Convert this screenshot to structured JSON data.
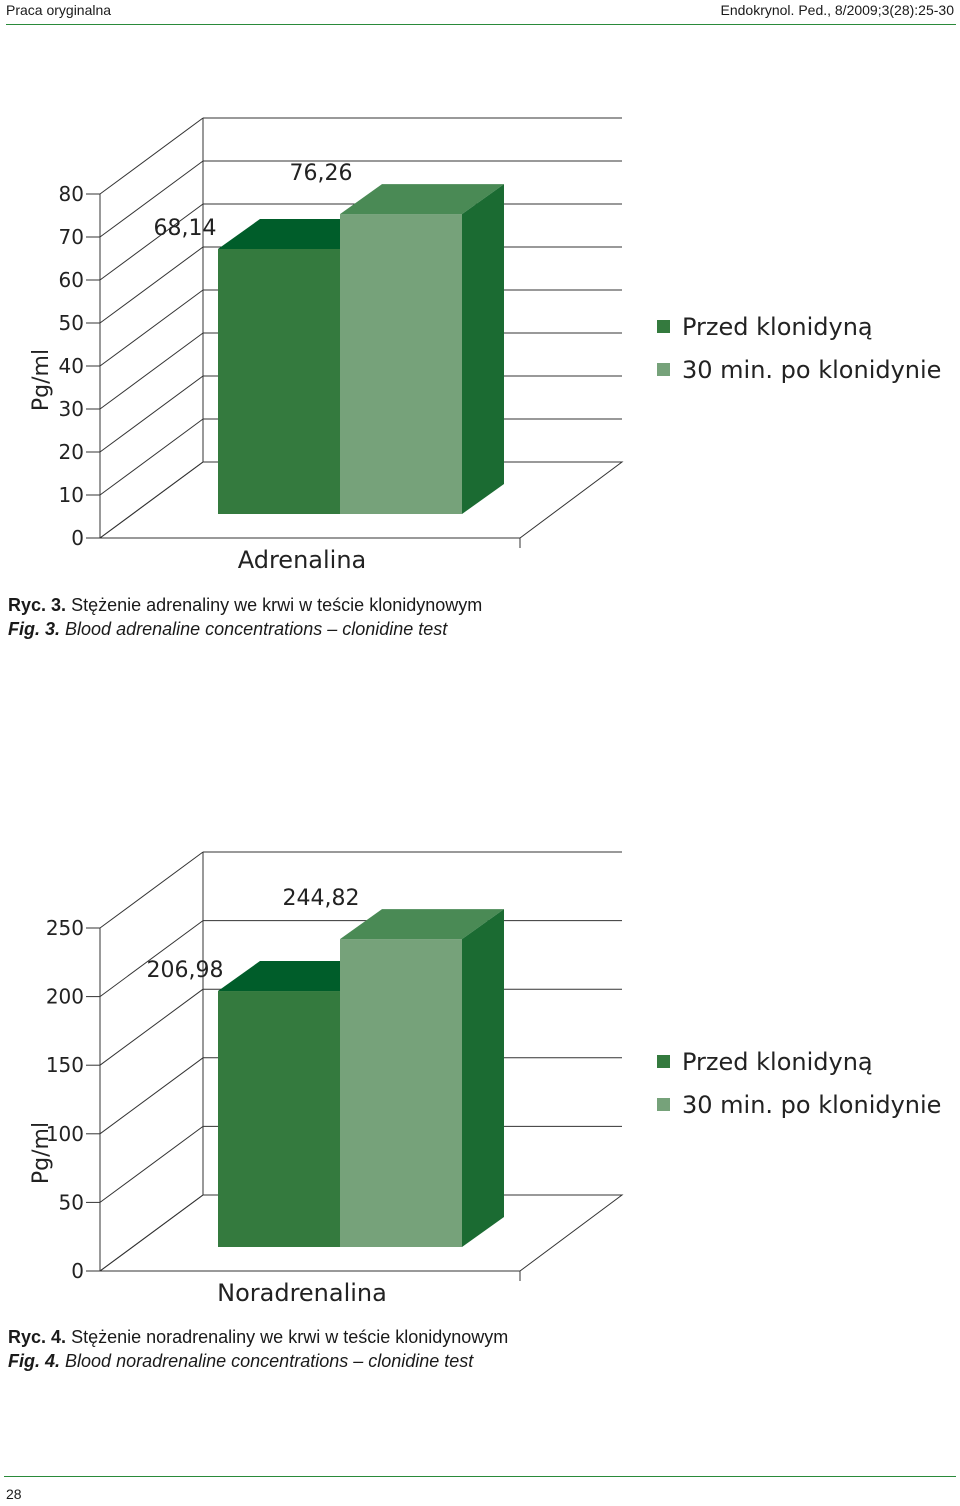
{
  "header": {
    "left": "Praca oryginalna",
    "right": "Endokrynol. Ped., 8/2009;3(28):25-30"
  },
  "colors": {
    "series1_front": "#347a3e",
    "series1_top": "#005d2a",
    "series2_front": "#76a27a",
    "series2_top": "#4a8a55",
    "side": "#1b6b32"
  },
  "chart_data": [
    {
      "type": "bar",
      "categories": [
        "Adrenalina"
      ],
      "series": [
        {
          "name": "Przed klonidyną",
          "values": [
            68.14
          ],
          "label": "68,14"
        },
        {
          "name": "30 min. po klonidynie",
          "values": [
            76.26
          ],
          "label": "76,26"
        }
      ],
      "ylabel": "Pg/ml",
      "yticks": [
        "0",
        "10",
        "20",
        "30",
        "40",
        "50",
        "60",
        "70",
        "80"
      ],
      "ylim": [
        0,
        80
      ],
      "grid": true,
      "legend": "right"
    },
    {
      "type": "bar",
      "categories": [
        "Noradrenalina"
      ],
      "series": [
        {
          "name": "Przed klonidyną",
          "values": [
            206.98
          ],
          "label": "206,98"
        },
        {
          "name": "30 min. po klonidynie",
          "values": [
            244.82
          ],
          "label": "244,82"
        }
      ],
      "ylabel": "Pg/ml",
      "yticks": [
        "0",
        "50",
        "100",
        "150",
        "200",
        "250"
      ],
      "ylim": [
        0,
        250
      ],
      "grid": true,
      "legend": "right"
    }
  ],
  "captions": [
    {
      "label_pl": "Ryc. 3.",
      "text_pl": "Stężenie adrenaliny we krwi w teście klonidynowym",
      "label_en": "Fig. 3.",
      "text_en": "Blood adrenaline concentrations – clonidine test"
    },
    {
      "label_pl": "Ryc. 4.",
      "text_pl": "Stężenie noradrenaliny we krwi w teście klonidynowym",
      "label_en": "Fig. 4.",
      "text_en": "Blood noradrenaline concentrations – clonidine test"
    }
  ],
  "page_number": "28"
}
